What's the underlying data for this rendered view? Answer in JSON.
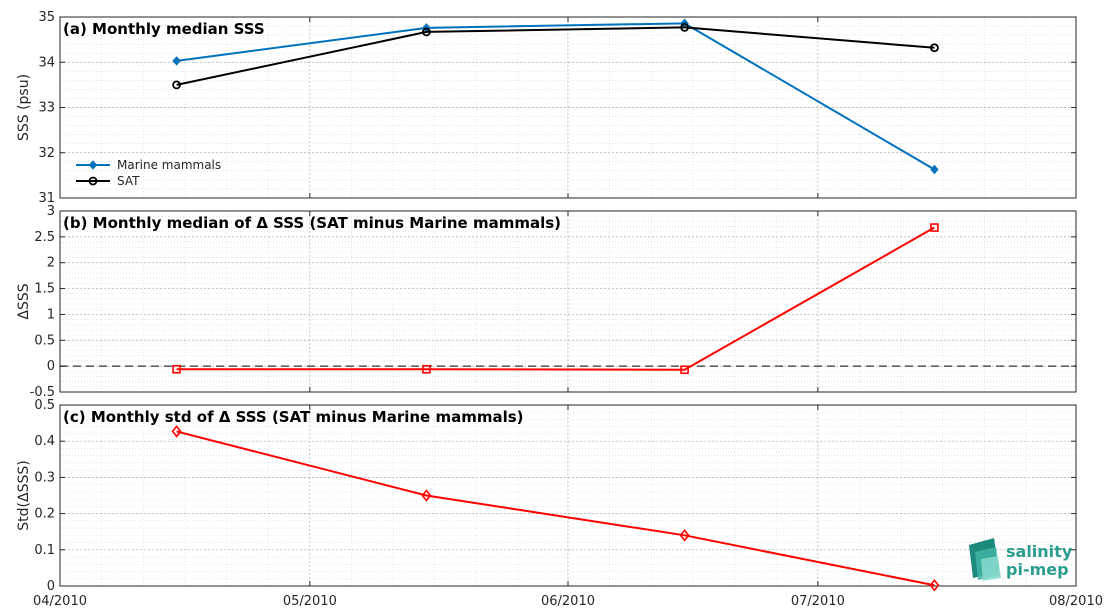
{
  "colors": {
    "marine_mammals": "#0072BD",
    "sat": "#000000",
    "delta": "#FF0000",
    "logo_primary": "#2a9d8f",
    "logo_secondary": "#7fd3c7"
  },
  "logo": {
    "line1": "salinity",
    "line2": "pi-mep"
  },
  "x_ticks": [
    "04/2010",
    "05/2010",
    "06/2010",
    "07/2010",
    "08/2010"
  ],
  "chart_data": [
    {
      "type": "line",
      "title": "(a) Monthly median SSS",
      "xlabel": "",
      "ylabel": "SSS (psu)",
      "x": [
        "2010-04-15",
        "2010-05-15",
        "2010-06-15",
        "2010-07-15"
      ],
      "ylim": [
        31,
        35
      ],
      "yticks": [
        "31",
        "32",
        "33",
        "34",
        "35"
      ],
      "grid": true,
      "legend": "lower-left",
      "series": [
        {
          "name": "Marine mammals",
          "values": [
            34.03,
            34.76,
            34.86,
            31.63
          ],
          "marker": "diamond-filled",
          "color_key": "marine_mammals"
        },
        {
          "name": "SAT",
          "values": [
            33.5,
            34.67,
            34.77,
            34.32
          ],
          "marker": "circle-open",
          "color_key": "sat"
        }
      ]
    },
    {
      "type": "line",
      "title": "(b) Monthly median of Δ SSS (SAT minus Marine mammals)",
      "xlabel": "",
      "ylabel": "ΔSSS",
      "x": [
        "2010-04-15",
        "2010-05-15",
        "2010-06-15",
        "2010-07-15"
      ],
      "ylim": [
        -0.5,
        3
      ],
      "yticks": [
        "-0.5",
        "0",
        "0.5",
        "1",
        "1.5",
        "2",
        "2.5",
        "3"
      ],
      "grid": true,
      "reference_line": 0,
      "series": [
        {
          "values": [
            -0.06,
            -0.06,
            -0.07,
            2.68
          ],
          "marker": "square-open",
          "color_key": "delta"
        }
      ]
    },
    {
      "type": "line",
      "title": "(c) Monthly std of Δ SSS (SAT minus Marine mammals)",
      "xlabel": "",
      "ylabel": "Std(ΔSSS)",
      "x": [
        "2010-04-15",
        "2010-05-15",
        "2010-06-15",
        "2010-07-15"
      ],
      "ylim": [
        0,
        0.5
      ],
      "yticks": [
        "0",
        "0.1",
        "0.2",
        "0.3",
        "0.4",
        "0.5"
      ],
      "grid": true,
      "series": [
        {
          "values": [
            0.427,
            0.25,
            0.14,
            0.002
          ],
          "marker": "diamond-open",
          "color_key": "delta"
        }
      ]
    }
  ]
}
